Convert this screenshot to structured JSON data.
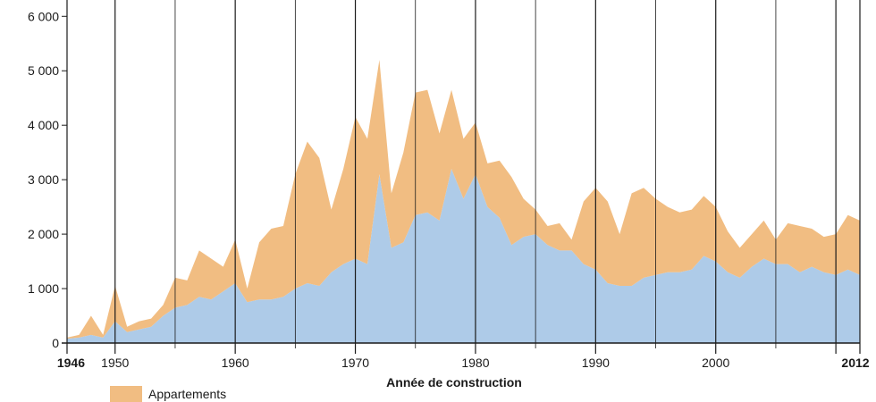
{
  "chart_data": {
    "type": "area",
    "stacked": true,
    "xlabel": "Année de construction",
    "ylabel": "",
    "xlim": [
      1946,
      2012
    ],
    "ylim": [
      0,
      6300
    ],
    "grid": "vertical lines every 5 years",
    "yticks": [
      0,
      1000,
      2000,
      3000,
      4000,
      5000,
      6000
    ],
    "ytick_labels": [
      "0",
      "1 000",
      "2 000",
      "3 000",
      "4 000",
      "5 000",
      "6 000"
    ],
    "xticks": [
      1946,
      1950,
      1960,
      1970,
      1980,
      1990,
      2000,
      2012
    ],
    "xticks_bold": [
      1946,
      2012
    ],
    "x": [
      1946,
      1947,
      1948,
      1949,
      1950,
      1951,
      1952,
      1953,
      1954,
      1955,
      1956,
      1957,
      1958,
      1959,
      1960,
      1961,
      1962,
      1963,
      1964,
      1965,
      1966,
      1967,
      1968,
      1969,
      1970,
      1971,
      1972,
      1973,
      1974,
      1975,
      1976,
      1977,
      1978,
      1979,
      1980,
      1981,
      1982,
      1983,
      1984,
      1985,
      1986,
      1987,
      1988,
      1989,
      1990,
      1991,
      1992,
      1993,
      1994,
      1995,
      1996,
      1997,
      1998,
      1999,
      2000,
      2001,
      2002,
      2003,
      2004,
      2005,
      2006,
      2007,
      2008,
      2009,
      2010,
      2011,
      2012
    ],
    "series": [
      {
        "color": "#aecbe8",
        "values": [
          80,
          100,
          150,
          100,
          400,
          200,
          250,
          300,
          500,
          650,
          700,
          850,
          800,
          950,
          1100,
          750,
          800,
          800,
          850,
          1000,
          1100,
          1050,
          1300,
          1450,
          1550,
          1450,
          3100,
          1750,
          1850,
          2350,
          2400,
          2250,
          3200,
          2650,
          3100,
          2500,
          2300,
          1800,
          1950,
          2000,
          1800,
          1700,
          1700,
          1450,
          1350,
          1100,
          1050,
          1050,
          1200,
          1250,
          1300,
          1300,
          1350,
          1600,
          1500,
          1300,
          1200,
          1400,
          1550,
          1450,
          1450,
          1300,
          1400,
          1300,
          1250,
          1350,
          1250
        ]
      },
      {
        "name": "Appartements",
        "color": "#f1bd82",
        "values": [
          20,
          50,
          350,
          50,
          650,
          100,
          150,
          150,
          200,
          550,
          450,
          850,
          750,
          450,
          800,
          250,
          1050,
          1300,
          1300,
          2100,
          2600,
          2350,
          1150,
          1750,
          2600,
          2300,
          2100,
          1000,
          1650,
          2250,
          2250,
          1600,
          1450,
          1100,
          950,
          800,
          1050,
          1250,
          700,
          450,
          350,
          500,
          200,
          1150,
          1500,
          1500,
          950,
          1700,
          1650,
          1400,
          1200,
          1100,
          1100,
          1100,
          1000,
          750,
          550,
          600,
          700,
          450,
          750,
          850,
          700,
          650,
          750,
          1000,
          1000
        ]
      }
    ]
  }
}
